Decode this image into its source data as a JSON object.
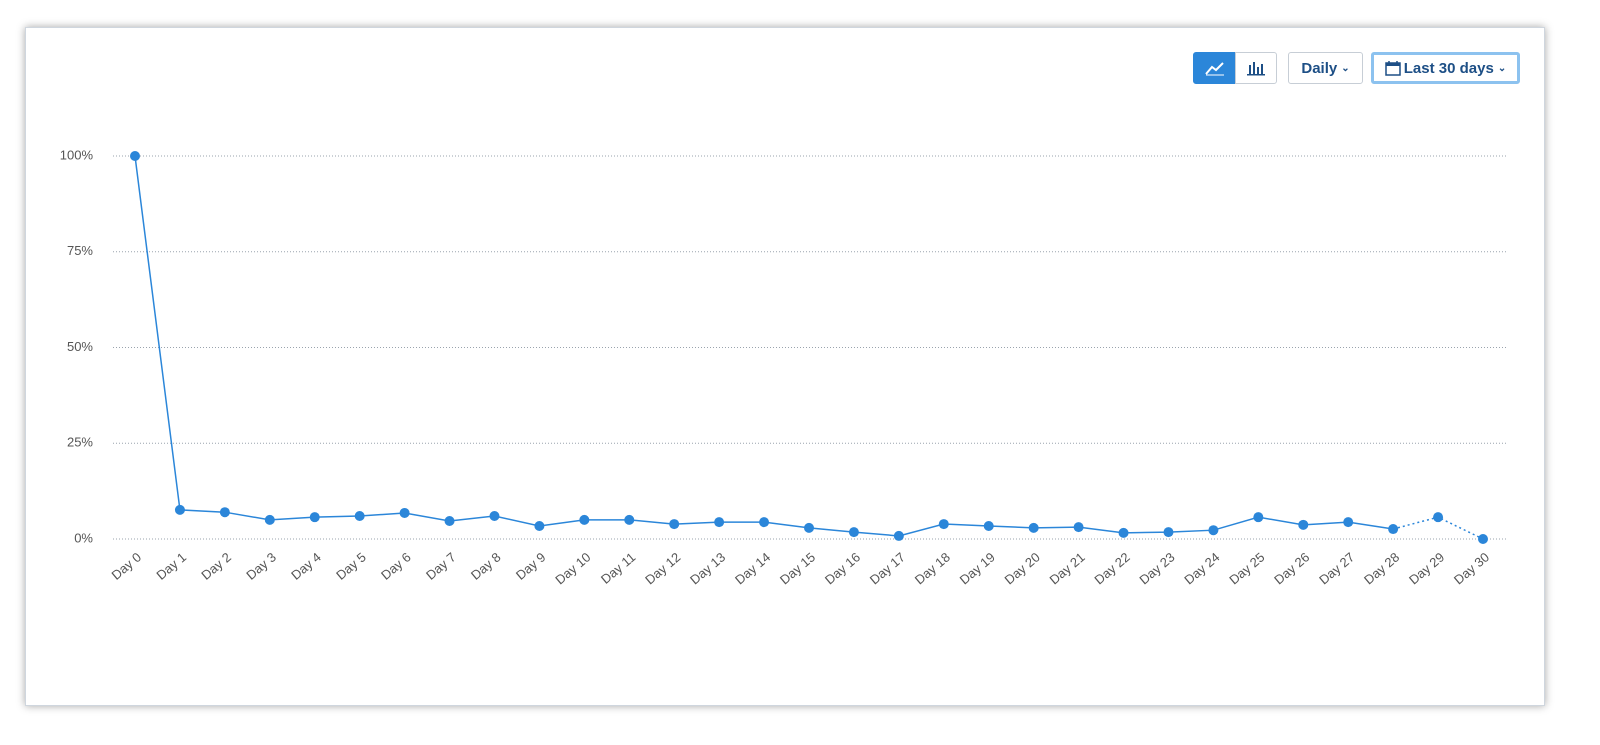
{
  "controls": {
    "interval": "Daily",
    "range": "Last 30 days"
  },
  "chart_data": {
    "type": "line",
    "categories": [
      "Day 0",
      "Day 1",
      "Day 2",
      "Day 3",
      "Day 4",
      "Day 5",
      "Day 6",
      "Day 7",
      "Day 8",
      "Day 9",
      "Day 10",
      "Day 11",
      "Day 12",
      "Day 13",
      "Day 14",
      "Day 15",
      "Day 16",
      "Day 17",
      "Day 18",
      "Day 19",
      "Day 20",
      "Day 21",
      "Day 22",
      "Day 23",
      "Day 24",
      "Day 25",
      "Day 26",
      "Day 27",
      "Day 28",
      "Day 29",
      "Day 30"
    ],
    "values": [
      100,
      7.6,
      7.0,
      5.0,
      5.7,
      6.0,
      6.8,
      4.7,
      6.0,
      3.4,
      5.0,
      5.0,
      3.9,
      4.4,
      4.4,
      2.9,
      1.8,
      0.8,
      3.9,
      3.4,
      2.9,
      3.1,
      1.6,
      1.8,
      2.3,
      5.7,
      3.7,
      4.4,
      2.6,
      5.7,
      0
    ],
    "color": "#2b86d9",
    "dotted_from": "Day 28",
    "ylim": [
      0,
      100
    ],
    "yticks": [
      {
        "value": 0,
        "label": "0%"
      },
      {
        "value": 25,
        "label": "25%"
      },
      {
        "value": 50,
        "label": "50%"
      },
      {
        "value": 75,
        "label": "75%"
      },
      {
        "value": 100,
        "label": "100%"
      }
    ],
    "grid": true
  }
}
